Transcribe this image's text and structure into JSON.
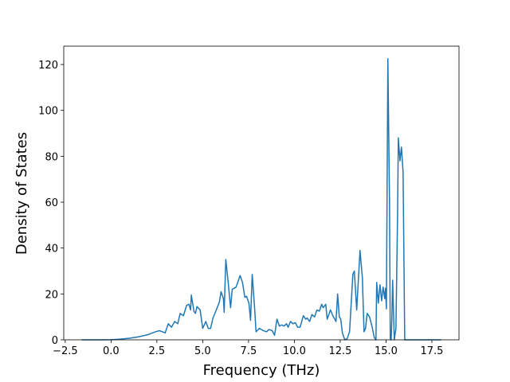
{
  "chart_data": {
    "type": "line",
    "xlabel": "Frequency (THz)",
    "ylabel": "Density of States",
    "x": [
      -1.6,
      -0.5,
      0.0,
      0.5,
      1.0,
      1.5,
      1.99,
      2.42,
      2.64,
      2.95,
      3.12,
      3.3,
      3.47,
      3.64,
      3.77,
      3.95,
      4.12,
      4.25,
      4.34,
      4.38,
      4.52,
      4.6,
      4.69,
      4.86,
      5.0,
      5.17,
      5.3,
      5.43,
      5.56,
      5.74,
      5.91,
      6.0,
      6.13,
      6.17,
      6.26,
      6.39,
      6.52,
      6.61,
      6.82,
      7.04,
      7.17,
      7.3,
      7.39,
      7.52,
      7.61,
      7.7,
      7.83,
      7.91,
      8.09,
      8.31,
      8.48,
      8.61,
      8.79,
      8.92,
      9.05,
      9.18,
      9.31,
      9.44,
      9.57,
      9.66,
      9.79,
      9.92,
      10.05,
      10.18,
      10.31,
      10.49,
      10.62,
      10.7,
      10.83,
      10.96,
      11.1,
      11.23,
      11.36,
      11.49,
      11.57,
      11.71,
      11.79,
      11.97,
      12.1,
      12.27,
      12.36,
      12.45,
      12.53,
      12.62,
      12.75,
      12.88,
      13.01,
      13.19,
      13.27,
      13.4,
      13.49,
      13.58,
      13.71,
      13.8,
      13.88,
      13.97,
      14.1,
      14.23,
      14.36,
      14.45,
      14.49,
      14.58,
      14.67,
      14.76,
      14.84,
      14.93,
      14.97,
      15.02,
      15.1,
      15.19,
      15.23,
      15.28,
      15.32,
      15.36,
      15.45,
      15.54,
      15.63,
      15.67,
      15.76,
      15.84,
      15.93,
      16.02,
      16.5,
      17.0,
      18.0
    ],
    "series": [
      {
        "color": "#1f77b4",
        "values": [
          0,
          0,
          0.05,
          0.3,
          0.7,
          1.3,
          2.2,
          3.5,
          4,
          3,
          7,
          5.5,
          8,
          7,
          11.5,
          10.5,
          15,
          15.5,
          13,
          19.5,
          12.5,
          11.5,
          14.5,
          13,
          5,
          8,
          5,
          5,
          9.5,
          13,
          16.5,
          21,
          18,
          12,
          35,
          25,
          14,
          22,
          23,
          28,
          25,
          18.5,
          19,
          16,
          8.5,
          28.5,
          14,
          3.5,
          5,
          4,
          3.5,
          4.5,
          4,
          2,
          9,
          6,
          6.5,
          6,
          7,
          5.5,
          8,
          7,
          7.5,
          5.5,
          5.5,
          10.5,
          9,
          9.5,
          8,
          11,
          10,
          13,
          12.5,
          15.5,
          14,
          15.5,
          9,
          13,
          10.5,
          8,
          20,
          10,
          9,
          3,
          0,
          0.5,
          3.5,
          28.5,
          30,
          13,
          26,
          39,
          27,
          3.5,
          5,
          11.5,
          10,
          6,
          1,
          0,
          25,
          16,
          24,
          17,
          23,
          18,
          22.5,
          13.5,
          122.5,
          60,
          0.5,
          0,
          10,
          26,
          0,
          5,
          55,
          88,
          78,
          84,
          73,
          0,
          0,
          0,
          0
        ]
      }
    ],
    "xlim": [
      -2.58,
      18.98
    ],
    "ylim": [
      0,
      128
    ],
    "xticks": [
      {
        "value": -2.5,
        "label": "−2.5"
      },
      {
        "value": 0,
        "label": "0.0"
      },
      2.5,
      {
        "value": 5,
        "label": "5.0"
      },
      7.5,
      {
        "value": 10,
        "label": "10.0"
      },
      12.5,
      {
        "value": 15,
        "label": "15.0"
      },
      17.5
    ],
    "yticks": [
      0,
      20,
      40,
      60,
      80,
      100,
      120
    ]
  }
}
